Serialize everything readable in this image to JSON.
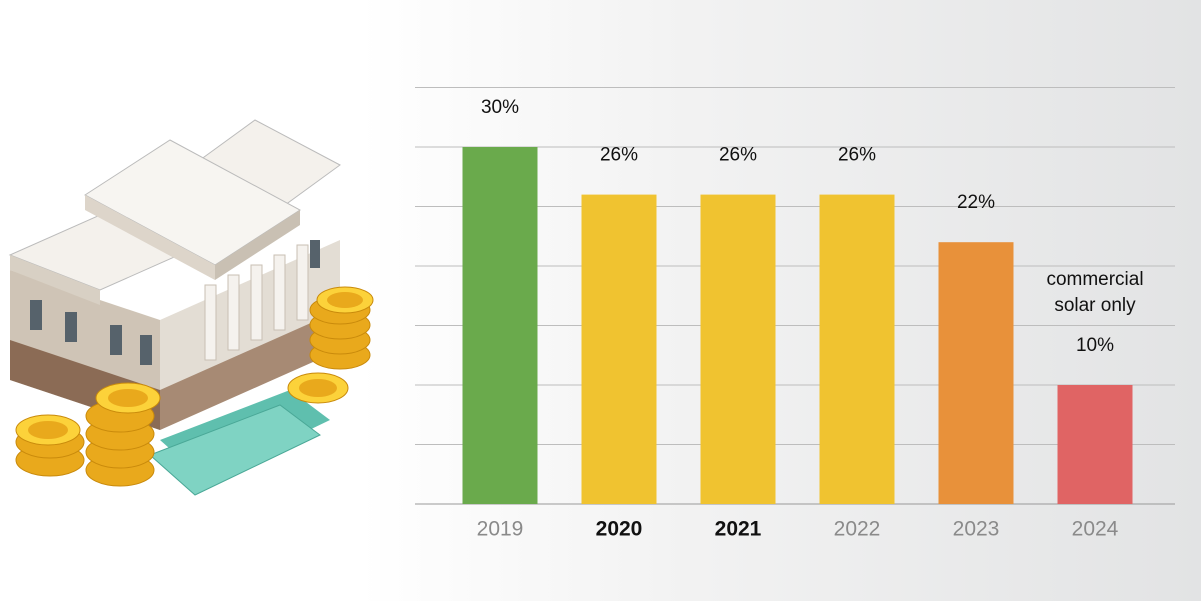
{
  "chart_data": {
    "type": "bar",
    "categories": [
      "2019",
      "2020",
      "2021",
      "2022",
      "2023",
      "2024"
    ],
    "values": [
      30,
      26,
      26,
      26,
      22,
      10
    ],
    "value_labels": [
      "30%",
      "26%",
      "26%",
      "26%",
      "22%",
      "10%"
    ],
    "colors": [
      "#6aaa4c",
      "#f0c330",
      "#f0c330",
      "#f0c330",
      "#e8913a",
      "#e06464"
    ],
    "bold_categories": [
      false,
      true,
      true,
      false,
      false,
      false
    ],
    "annotation": "commercial solar only",
    "ylim": [
      0,
      35
    ],
    "yticks": [
      0,
      5,
      10,
      15,
      20,
      25,
      30,
      35
    ],
    "grid": true
  }
}
